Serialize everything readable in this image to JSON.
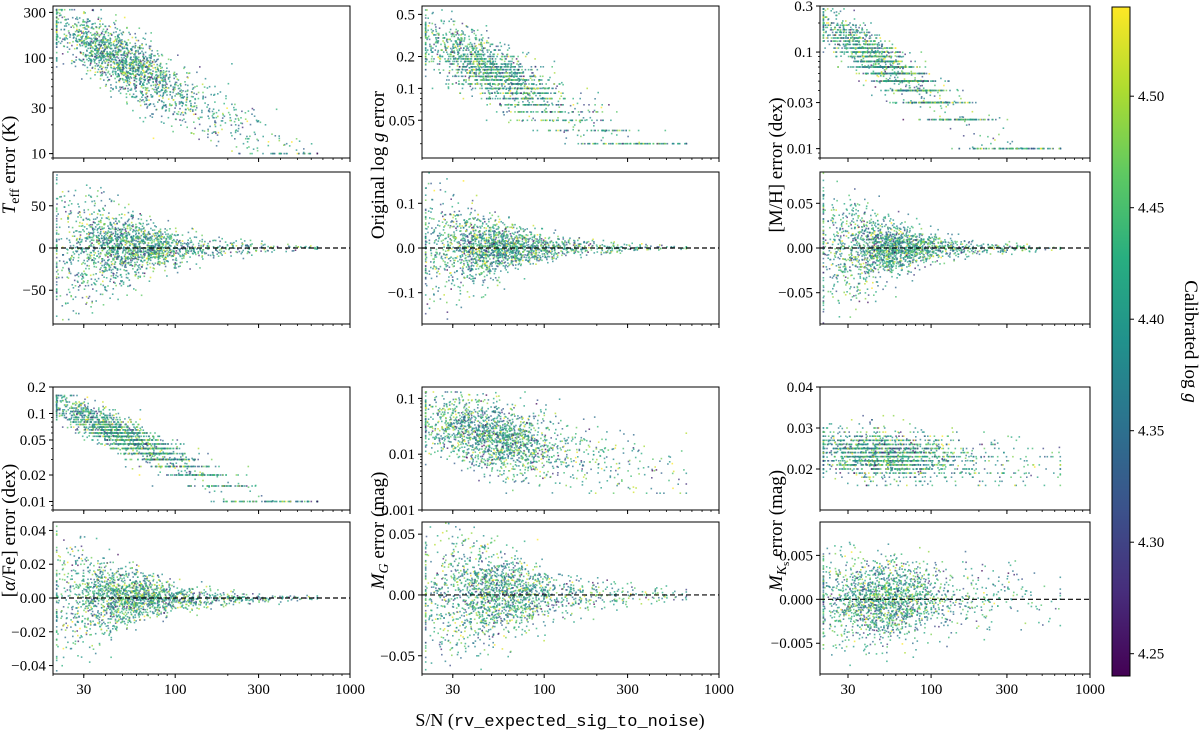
{
  "chart_data": {
    "type": "scatter",
    "x_axis": {
      "label_prefix": "S/N (",
      "label_code": "rv_expected_sig_to_noise",
      "label_suffix": ")",
      "scale": "log",
      "lim": [
        20,
        1000
      ],
      "ticks": [
        30,
        100,
        300,
        1000
      ],
      "tick_labels": [
        "30",
        "100",
        "300",
        "1000"
      ]
    },
    "colorbar": {
      "label": "Calibrated log g",
      "label_main": "Calibrated log ",
      "label_italic": "g",
      "cmap": "viridis",
      "lim": [
        4.24,
        4.54
      ],
      "ticks": [
        4.25,
        4.3,
        4.35,
        4.4,
        4.45,
        4.5
      ],
      "tick_labels": [
        "4.25",
        "4.30",
        "4.35",
        "4.40",
        "4.45",
        "4.50"
      ]
    },
    "ref_line": {
      "y": 0,
      "style": "dashed",
      "color": "#000000"
    },
    "panels": [
      {
        "id": "teff-error",
        "row": 0,
        "col": 0,
        "kind": "err",
        "scale": "log",
        "ylim": [
          9,
          350
        ],
        "ticks": [
          10,
          30,
          100,
          300
        ],
        "tick_labels": [
          "10",
          "30",
          "100",
          "300"
        ],
        "trend": {
          "a": 150,
          "slope": -1.0,
          "max": 320,
          "min": 10,
          "scatter_dex": 0.16
        },
        "ylabel": {
          "lines": [
            [
              {
                "t": "T",
                "i": true
              },
              {
                "t": "eff",
                "sub": true
              },
              {
                "t": " error (K)"
              }
            ]
          ],
          "span": "pair"
        }
      },
      {
        "id": "teff-diff",
        "row": 1,
        "col": 0,
        "kind": "diff",
        "scale": "linear",
        "ylim": [
          -90,
          90
        ],
        "ticks": [
          -50,
          0,
          50
        ],
        "tick_labels": [
          "−50",
          "0",
          "50"
        ],
        "trend": {
          "sigma_at_30": 35,
          "slope": -1.0,
          "min": 1
        }
      },
      {
        "id": "logg-error",
        "row": 0,
        "col": 1,
        "kind": "err",
        "scale": "log",
        "ylim": [
          0.022,
          0.6
        ],
        "ticks": [
          0.05,
          0.1,
          0.2,
          0.5
        ],
        "tick_labels": [
          "0.05",
          "0.1",
          "0.2",
          "0.5"
        ],
        "trend": {
          "a": 0.22,
          "slope": -0.85,
          "max": 0.55,
          "min": 0.03,
          "scatter_dex": 0.14,
          "quant": 0.01
        },
        "ylabel": {
          "lines": [
            [
              {
                "t": "Original log "
              },
              {
                "t": "g",
                "i": true
              },
              {
                "t": " error"
              }
            ]
          ],
          "span": "pair"
        }
      },
      {
        "id": "logg-diff",
        "row": 1,
        "col": 1,
        "kind": "diff",
        "scale": "linear",
        "ylim": [
          -0.17,
          0.17
        ],
        "ticks": [
          -0.1,
          0.0,
          0.1
        ],
        "tick_labels": [
          "−0.1",
          "0.0",
          "0.1"
        ],
        "trend": {
          "sigma_at_30": 0.055,
          "slope": -1.0,
          "min": 0.002
        }
      },
      {
        "id": "mh-error",
        "row": 0,
        "col": 2,
        "kind": "err",
        "scale": "log",
        "ylim": [
          0.008,
          0.3
        ],
        "ticks": [
          0.01,
          0.03,
          0.1,
          0.3
        ],
        "tick_labels": [
          "0.01",
          "0.03",
          "0.1",
          "0.3"
        ],
        "trend": {
          "a": 0.13,
          "slope": -1.1,
          "max": 0.28,
          "min": 0.01,
          "scatter_dex": 0.12,
          "quant": 0.01
        },
        "ylabel": {
          "lines": [
            [
              {
                "t": "[M/H] error  (dex)"
              }
            ]
          ],
          "span": "pair"
        }
      },
      {
        "id": "mh-diff",
        "row": 1,
        "col": 2,
        "kind": "diff",
        "scale": "linear",
        "ylim": [
          -0.085,
          0.085
        ],
        "ticks": [
          -0.05,
          0.0,
          0.05
        ],
        "tick_labels": [
          "−0.05",
          "0.00",
          "0.05"
        ],
        "trend": {
          "sigma_at_30": 0.028,
          "slope": -1.0,
          "min": 0.001
        }
      },
      {
        "id": "alpha-error",
        "row": 2,
        "col": 0,
        "kind": "err",
        "scale": "log",
        "ylim": [
          0.008,
          0.2
        ],
        "ticks": [
          0.01,
          0.02,
          0.05,
          0.1,
          0.2
        ],
        "tick_labels": [
          "0.01",
          "0.02",
          "0.05",
          "0.1",
          "0.2"
        ],
        "trend": {
          "a": 0.09,
          "slope": -0.95,
          "max": 0.16,
          "min": 0.01,
          "scatter_dex": 0.1,
          "quant": 0.005
        },
        "ylabel": {
          "lines": [
            [
              {
                "t": "["
              },
              {
                "t": "α",
                "i": true
              },
              {
                "t": "/Fe] error  (dex)"
              }
            ]
          ],
          "span": "pair"
        }
      },
      {
        "id": "alpha-diff",
        "row": 3,
        "col": 0,
        "kind": "diff",
        "scale": "linear",
        "ylim": [
          -0.045,
          0.045
        ],
        "ticks": [
          -0.04,
          -0.02,
          0.0,
          0.02,
          0.04
        ],
        "tick_labels": [
          "−0.04",
          "−0.02",
          "0.00",
          "0.02",
          "0.04"
        ],
        "trend": {
          "sigma_at_30": 0.015,
          "slope": -1.0,
          "min": 0.0005
        }
      },
      {
        "id": "mg-error",
        "row": 2,
        "col": 1,
        "kind": "err",
        "scale": "log",
        "ylim": [
          0.001,
          0.16
        ],
        "ticks": [
          0.001,
          0.01,
          0.1
        ],
        "tick_labels": [
          "0.001",
          "0.01",
          "0.1"
        ],
        "trend": {
          "a": 0.03,
          "slope": -0.7,
          "max": 0.13,
          "min": 0.002,
          "scatter_dex": 0.3
        },
        "ylabel": {
          "lines": [
            [
              {
                "t": "M",
                "i": true
              },
              {
                "t": "G",
                "sub": true,
                "i": true
              },
              {
                "t": " error  (mag)"
              }
            ]
          ],
          "span": "pair"
        }
      },
      {
        "id": "mg-diff",
        "row": 3,
        "col": 1,
        "kind": "diff",
        "scale": "linear",
        "ylim": [
          -0.065,
          0.06
        ],
        "ticks": [
          -0.05,
          0.0,
          0.05
        ],
        "tick_labels": [
          "−0.05",
          "0.00",
          "0.05"
        ],
        "trend": {
          "sigma_at_30": 0.028,
          "slope": -0.75,
          "min": 0.002
        }
      },
      {
        "id": "mks-error",
        "row": 2,
        "col": 2,
        "kind": "err",
        "scale": "linear",
        "ylim": [
          0.01,
          0.04
        ],
        "ticks": [
          0.02,
          0.03,
          0.04
        ],
        "tick_labels": [
          "0.02",
          "0.03",
          "0.04"
        ],
        "trend": {
          "a": 0.024,
          "slope": -0.05,
          "max": 0.034,
          "min": 0.016,
          "scatter_lin": 0.0028,
          "quant": 0.001
        },
        "ylabel": {
          "lines": [
            [
              {
                "t": "M",
                "i": true
              },
              {
                "t": "K",
                "sub": true,
                "i": true
              },
              {
                "t": "s",
                "subsub": true
              },
              {
                "t": " error  (mag)"
              }
            ]
          ],
          "span": "pair"
        }
      },
      {
        "id": "mks-diff",
        "row": 3,
        "col": 2,
        "kind": "diff",
        "scale": "linear",
        "ylim": [
          -0.0085,
          0.0088
        ],
        "ticks": [
          -0.005,
          0.0,
          0.005
        ],
        "tick_labels": [
          "−0.005",
          "0.000",
          "0.005"
        ],
        "trend": {
          "sigma_at_30": 0.0025,
          "slope": -0.15,
          "min": 0.0008
        }
      }
    ]
  }
}
